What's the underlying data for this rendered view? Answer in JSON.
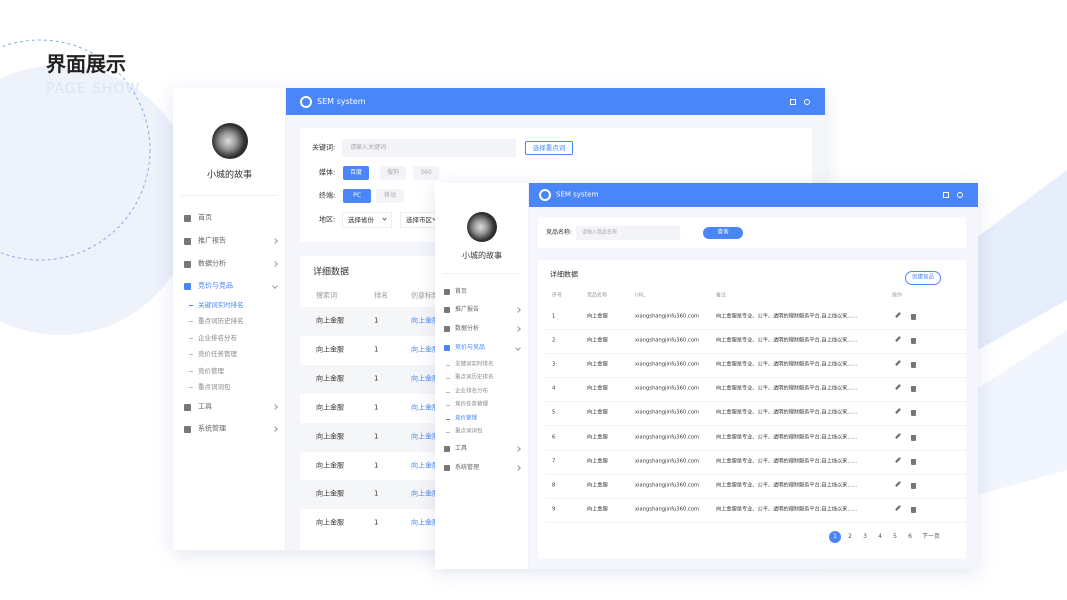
{
  "header": {
    "title": "界面展示",
    "subtitle": "PAGE SHOW"
  },
  "back_window": {
    "brand": "SEM system",
    "profile_name": "小城的故事",
    "menu": [
      {
        "label": "首页"
      },
      {
        "label": "推广报告"
      },
      {
        "label": "数据分析"
      },
      {
        "label": "竞价与竞品",
        "active_child": 0,
        "children": [
          "关键词实时排名",
          "重点词历史排名",
          "企业排名分布",
          "竞价任务管理",
          "竞价管理",
          "重点词词包"
        ]
      },
      {
        "label": "工具"
      },
      {
        "label": "系统管理"
      }
    ],
    "filters": {
      "keyword_label": "关键词:",
      "keyword_placeholder": "请输入关键词",
      "keyword_button": "选择重点词",
      "media_label": "媒体:",
      "media_options": [
        "百度",
        "搜狗",
        "360"
      ],
      "terminal_label": "终端:",
      "terminal_options": [
        "PC",
        "移动"
      ],
      "region_label": "地区:",
      "region_selects": [
        "选择省份",
        "选择市区"
      ]
    },
    "section_title": "详细数据",
    "table": {
      "headers": [
        "搜索词",
        "排名",
        "创意标题"
      ],
      "rows": [
        [
          "向上金服",
          1,
          "向上金服"
        ],
        [
          "向上金服",
          1,
          "向上金服"
        ],
        [
          "向上金服",
          1,
          "向上金服"
        ],
        [
          "向上金服",
          1,
          "向上金服"
        ],
        [
          "向上金服",
          1,
          "向上金服"
        ],
        [
          "向上金服",
          1,
          "向上金服"
        ],
        [
          "向上金服",
          1,
          "向上金服"
        ],
        [
          "向上金服",
          1,
          "向上金服"
        ]
      ]
    }
  },
  "front_window": {
    "brand": "SEM system",
    "profile_name": "小城的故事",
    "menu": [
      {
        "label": "首页"
      },
      {
        "label": "推广报告"
      },
      {
        "label": "数据分析"
      },
      {
        "label": "竞价与竞品",
        "active_child": 4,
        "children": [
          "关键词实时排名",
          "重点词历史排名",
          "企业排名分布",
          "竞价任务管理",
          "竞价管理",
          "重点词词包"
        ]
      },
      {
        "label": "工具"
      },
      {
        "label": "系统管理"
      }
    ],
    "search_label": "竞品名称:",
    "search_placeholder": "请输入竞品名称",
    "search_button": "查询",
    "section_title": "详细数据",
    "create_button": "创建竞品",
    "table": {
      "headers": [
        "序号",
        "竞品名称",
        "URL",
        "备注",
        "操作"
      ],
      "rows": [
        [
          1,
          "向上金服",
          "xiangshangjinfu360.com",
          "向上金服是专业、公平、透明的理财服务平台,自上线以来......"
        ],
        [
          2,
          "向上金服",
          "xiangshangjinfu360.com",
          "向上金服是专业、公平、透明的理财服务平台,自上线以来......"
        ],
        [
          3,
          "向上金服",
          "xiangshangjinfu360.com",
          "向上金服是专业、公平、透明的理财服务平台,自上线以来......"
        ],
        [
          4,
          "向上金服",
          "xiangshangjinfu360.com",
          "向上金服是专业、公平、透明的理财服务平台,自上线以来......"
        ],
        [
          5,
          "向上金服",
          "xiangshangjinfu360.com",
          "向上金服是专业、公平、透明的理财服务平台,自上线以来......"
        ],
        [
          6,
          "向上金服",
          "xiangshangjinfu360.com",
          "向上金服是专业、公平、透明的理财服务平台,自上线以来......"
        ],
        [
          7,
          "向上金服",
          "xiangshangjinfu360.com",
          "向上金服是专业、公平、透明的理财服务平台,自上线以来......"
        ],
        [
          8,
          "向上金服",
          "xiangshangjinfu360.com",
          "向上金服是专业、公平、透明的理财服务平台,自上线以来......"
        ],
        [
          9,
          "向上金服",
          "xiangshangjinfu360.com",
          "向上金服是专业、公平、透明的理财服务平台,自上线以来......"
        ]
      ]
    },
    "pagination": {
      "pages": [
        1,
        2,
        3,
        4,
        5,
        6
      ],
      "current_index": 0,
      "next": "下一页"
    }
  }
}
